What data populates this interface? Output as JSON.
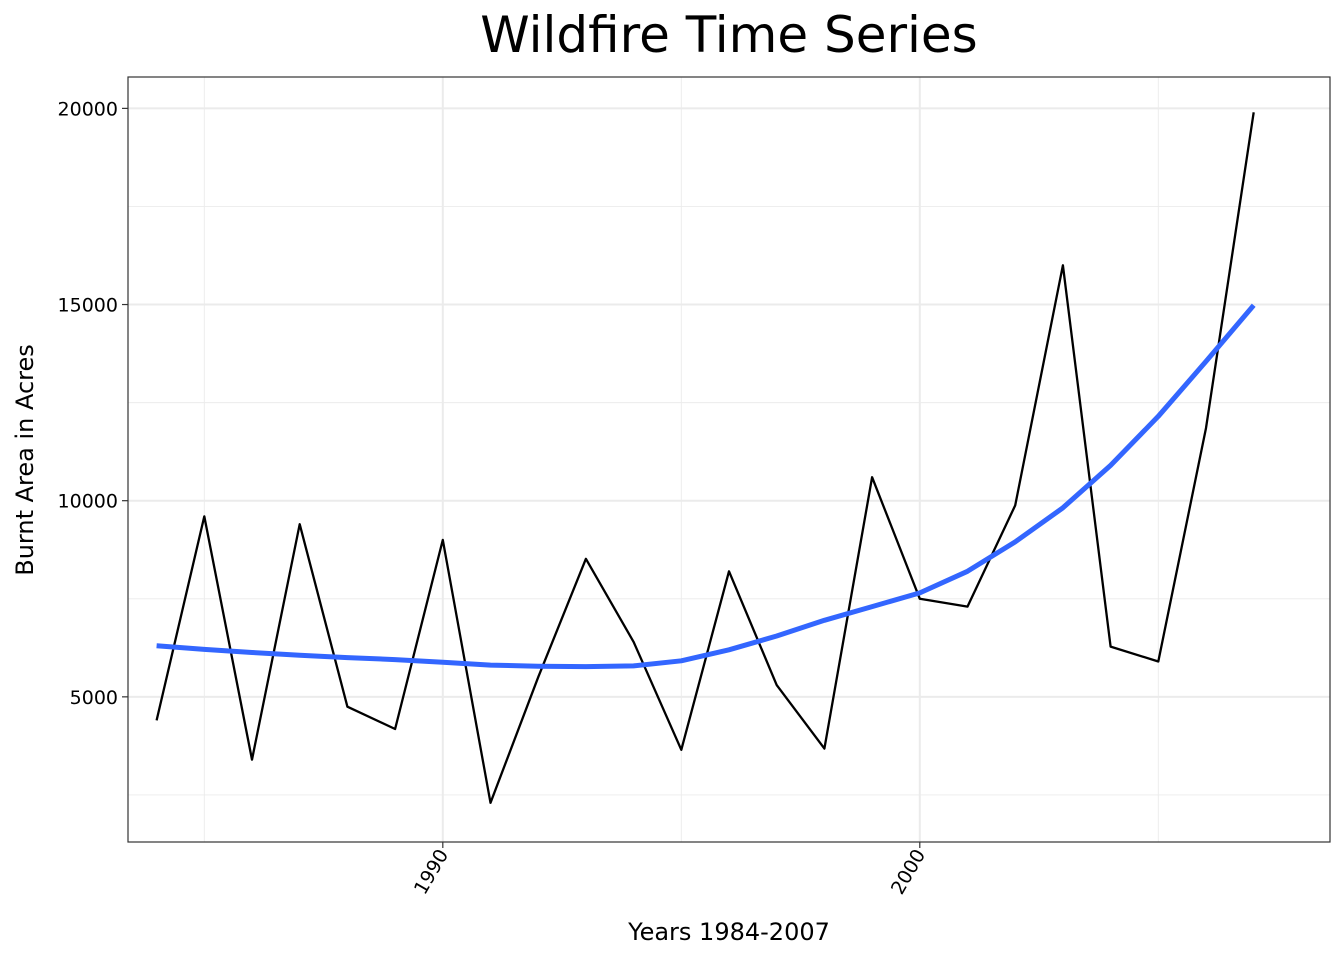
{
  "chart_data": {
    "type": "line",
    "title": "Wildfire Time Series",
    "xlabel": "Years 1984-2007",
    "ylabel": "Burnt Area in Acres",
    "x": [
      1984,
      1985,
      1986,
      1987,
      1988,
      1989,
      1990,
      1991,
      1992,
      1993,
      1994,
      1995,
      1996,
      1997,
      1998,
      1999,
      2000,
      2001,
      2002,
      2003,
      2004,
      2005,
      2006,
      2007
    ],
    "series": [
      {
        "values": [
          4400,
          9600,
          3400,
          9400,
          4750,
          4180,
          9000,
          2300,
          5500,
          8520,
          6400,
          3650,
          8200,
          5300,
          3680,
          10600,
          7500,
          7300,
          9880,
          16000,
          6280,
          5900,
          11850,
          19900
        ],
        "color": "#000000"
      },
      {
        "values": [
          6300,
          6210,
          6130,
          6060,
          6000,
          5950,
          5880,
          5810,
          5780,
          5770,
          5790,
          5920,
          6200,
          6550,
          6950,
          7300,
          7650,
          8200,
          8950,
          9820,
          10900,
          12150,
          13550,
          14980
        ],
        "color": "#3366FF"
      }
    ],
    "xlim": [
      1983.4,
      2008.6
    ],
    "ylim": [
      1300,
      20800
    ],
    "x_ticks": [
      1990,
      2000
    ],
    "x_tick_labels": [
      "1990",
      "2000"
    ],
    "x_minor_ticks": [
      1985,
      1995,
      2005
    ],
    "y_ticks": [
      5000,
      10000,
      15000,
      20000
    ],
    "y_tick_labels": [
      "5000",
      "10000",
      "15000",
      "20000"
    ],
    "y_minor_ticks": [
      2500,
      7500,
      12500,
      17500
    ],
    "grid": true,
    "legend": "none",
    "colors": {
      "panel_border": "#333333",
      "grid": "#EBEBEB",
      "axis_text": "#000000"
    }
  }
}
